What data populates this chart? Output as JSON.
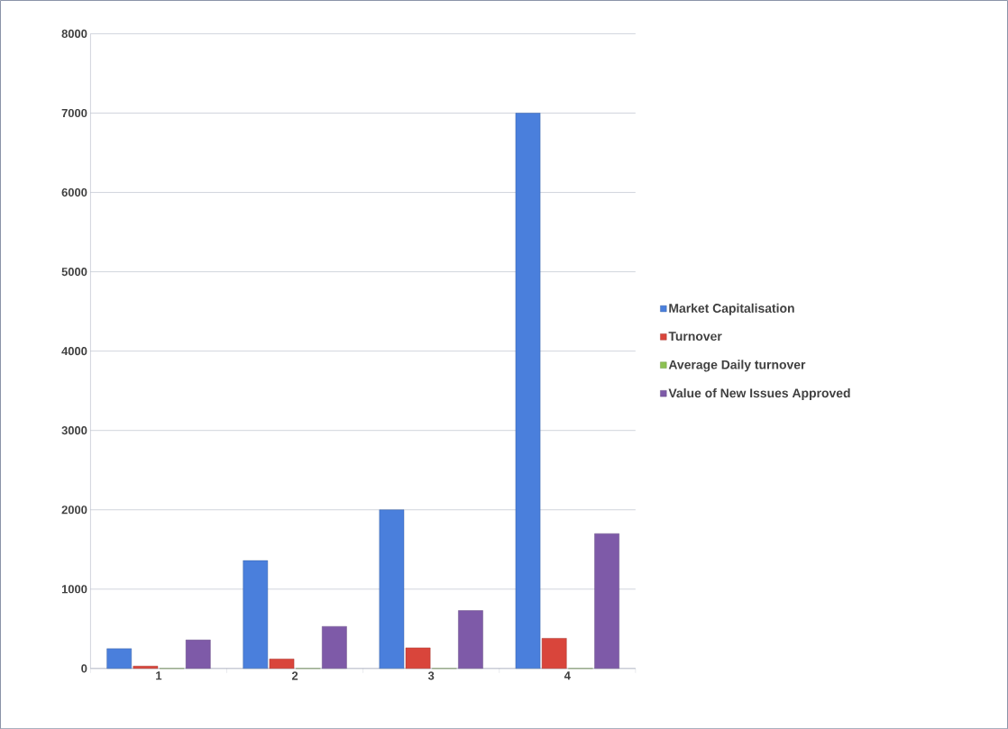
{
  "chart_data": {
    "type": "bar",
    "categories": [
      "1",
      "2",
      "3",
      "4"
    ],
    "series": [
      {
        "name": "Market Capitalisation",
        "color": "#4a7fdc",
        "values": [
          250,
          1360,
          2000,
          7000
        ]
      },
      {
        "name": "Turnover",
        "color": "#d9453b",
        "values": [
          30,
          120,
          260,
          380
        ]
      },
      {
        "name": "Average Daily turnover",
        "color": "#8cc152",
        "values": [
          0,
          0,
          0,
          0
        ]
      },
      {
        "name": "Value of New Issues Approved",
        "color": "#7e5aa8",
        "values": [
          360,
          530,
          730,
          1700
        ]
      }
    ],
    "ylim": [
      0,
      8000
    ],
    "yticks": [
      0,
      1000,
      2000,
      3000,
      4000,
      5000,
      6000,
      7000,
      8000
    ],
    "grid": "y",
    "legend": "right"
  }
}
